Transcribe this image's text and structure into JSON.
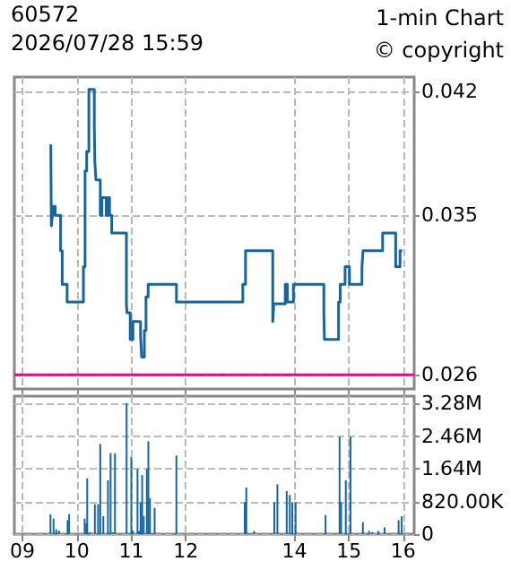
{
  "chart_data": [
    {
      "type": "step",
      "title": "60572",
      "subtitle": "2026/07/28 15:59",
      "annotations": [
        "1-min Chart",
        "© copyright"
      ],
      "xlim": [
        8.85,
        16.2
      ],
      "xticks": [
        9,
        10,
        11,
        12,
        14,
        15,
        16
      ],
      "ylim": [
        0.0252,
        0.0428
      ],
      "yticks": [
        0.026,
        0.035,
        0.042
      ],
      "tick_labels": "y",
      "grid": true,
      "ref_lines": [
        {
          "axis": "y",
          "value": 0.026,
          "color": "#ff0080"
        }
      ],
      "series": [
        {
          "color": "#1565a0",
          "x": [
            9.52,
            9.53,
            9.55,
            9.57,
            9.6,
            9.63,
            9.7,
            9.73,
            9.82,
            10.12,
            10.15,
            10.18,
            10.22,
            10.32,
            10.33,
            10.35,
            10.43,
            10.46,
            10.49,
            10.54,
            10.57,
            10.6,
            10.64,
            10.66,
            10.91,
            10.92,
            10.98,
            11.03,
            11.12,
            11.17,
            11.19,
            11.24,
            11.27,
            11.31,
            11.36,
            11.83,
            13.05,
            13.1,
            13.26,
            13.6,
            13.62,
            13.7,
            13.83,
            13.87,
            13.98,
            14.02,
            14.54,
            14.55,
            14.81,
            14.84,
            14.93,
            15.01,
            15.03,
            15.24,
            15.26,
            15.35,
            15.62,
            15.64,
            15.86,
            15.89,
            15.94,
            15.98
          ],
          "values": [
            0.039,
            0.0344,
            0.035,
            0.0355,
            0.035,
            0.035,
            0.033,
            0.0311,
            0.0301,
            0.0321,
            0.0375,
            0.0386,
            0.0421,
            0.04,
            0.038,
            0.037,
            0.035,
            0.036,
            0.036,
            0.035,
            0.036,
            0.035,
            0.034,
            0.034,
            0.03,
            0.0295,
            0.028,
            0.029,
            0.029,
            0.0282,
            0.027,
            0.0285,
            0.0304,
            0.0311,
            0.0311,
            0.0301,
            0.0311,
            0.033,
            0.033,
            0.029,
            0.03,
            0.03,
            0.0311,
            0.0301,
            0.0311,
            0.0311,
            0.0295,
            0.028,
            0.0301,
            0.0311,
            0.0321,
            0.0311,
            0.0311,
            0.0321,
            0.033,
            0.033,
            0.034,
            0.034,
            0.0321,
            0.0321,
            0.033,
            0.033
          ]
        }
      ]
    },
    {
      "type": "bar",
      "xlim": [
        8.85,
        16.2
      ],
      "xticks": [
        {
          "value": 9,
          "label": "09"
        },
        {
          "value": 10,
          "label": "10"
        },
        {
          "value": 11,
          "label": "11"
        },
        {
          "value": 12,
          "label": "12"
        },
        {
          "value": 14,
          "label": "14"
        },
        {
          "value": 15,
          "label": "15"
        },
        {
          "value": 16,
          "label": "16"
        }
      ],
      "ylim": [
        0,
        3460000
      ],
      "yticks": [
        0,
        {
          "value": 820000,
          "label": "820.00K"
        },
        {
          "value": 1640000,
          "label": "1.64M"
        },
        {
          "value": 2460000,
          "label": "2.46M"
        },
        {
          "value": 3280000,
          "label": "3.28M"
        }
      ],
      "grid": true,
      "series": [
        {
          "color": "#1565a0",
          "x": [
            9.514,
            9.571,
            9.62,
            9.67,
            9.829,
            9.857,
            10.143,
            10.171,
            10.19,
            10.24,
            10.33,
            10.39,
            10.429,
            10.486,
            10.571,
            10.62,
            10.657,
            10.7,
            10.914,
            11.0,
            11.029,
            11.114,
            11.143,
            11.171,
            11.2,
            11.229,
            11.286,
            11.314,
            11.343,
            11.429,
            11.829,
            13.086,
            13.114,
            13.257,
            13.629,
            13.686,
            13.857,
            13.914,
            13.96,
            14.02,
            14.571,
            14.829,
            14.857,
            14.943,
            15.029,
            15.257,
            15.371,
            15.429,
            15.543,
            15.657,
            15.914,
            15.971
          ],
          "values": [
            500000,
            390000,
            120000,
            90000,
            350000,
            500000,
            390000,
            270000,
            1400000,
            50000,
            750000,
            750000,
            2260000,
            450000,
            1350000,
            2030000,
            50000,
            2030000,
            3280000,
            1930000,
            90000,
            1630000,
            80000,
            800000,
            1480000,
            450000,
            1630000,
            2330000,
            900000,
            660000,
            1970000,
            800000,
            1170000,
            80000,
            800000,
            1250000,
            1080000,
            980000,
            800000,
            800000,
            480000,
            2440000,
            800000,
            1350000,
            2440000,
            300000,
            80000,
            50000,
            80000,
            170000,
            350000,
            450000
          ]
        }
      ]
    }
  ]
}
